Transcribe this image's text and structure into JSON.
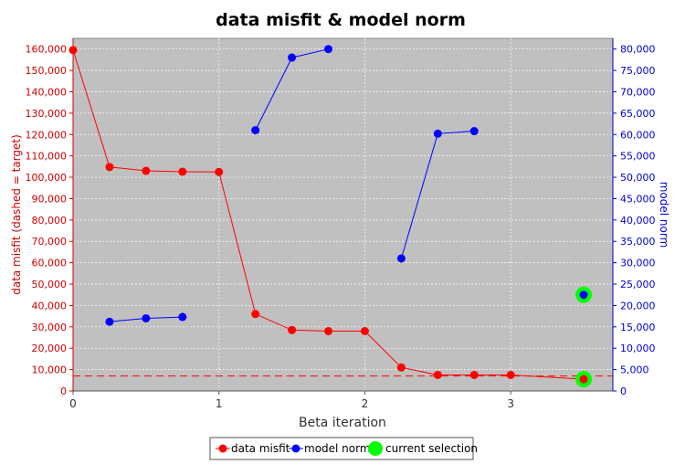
{
  "chart_data": {
    "type": "line",
    "title": "data misfit & model norm",
    "xlabel": "Beta iteration",
    "ylabel_left": "data misfit (dashed = target)",
    "ylabel_right": "model norm",
    "xlim": [
      0,
      3.7
    ],
    "ylim_left": [
      0,
      165000
    ],
    "ylim_right": [
      0,
      82500
    ],
    "x_ticks": [
      "0",
      "1",
      "2",
      "3"
    ],
    "y_left_ticks": [
      "0",
      "10,000",
      "20,000",
      "30,000",
      "40,000",
      "50,000",
      "60,000",
      "70,000",
      "80,000",
      "90,000",
      "100,000",
      "110,000",
      "120,000",
      "130,000",
      "140,000",
      "150,000",
      "160,000"
    ],
    "y_right_ticks": [
      "0",
      "5,000",
      "10,000",
      "15,000",
      "20,000",
      "25,000",
      "30,000",
      "35,000",
      "40,000",
      "45,000",
      "50,000",
      "55,000",
      "60,000",
      "65,000",
      "70,000",
      "75,000",
      "80,000"
    ],
    "grid": true,
    "legend_position": "bottom",
    "target_misfit": 7000,
    "series": [
      {
        "name": "data misfit",
        "axis": "left",
        "color": "#ff0000",
        "segments": [
          [
            [
              0,
              159500
            ],
            [
              0.25,
              104800
            ],
            [
              0.5,
              103000
            ],
            [
              0.75,
              102600
            ],
            [
              1.0,
              102500
            ],
            [
              1.25,
              36000
            ],
            [
              1.5,
              28500
            ],
            [
              1.75,
              28000
            ],
            [
              2.0,
              28000
            ],
            [
              2.25,
              11000
            ],
            [
              2.5,
              7500
            ],
            [
              2.75,
              7500
            ],
            [
              3.0,
              7500
            ],
            [
              3.5,
              5500
            ]
          ]
        ]
      },
      {
        "name": "model norm",
        "axis": "right",
        "color": "#0000ff",
        "segments": [
          [
            [
              0.25,
              16200
            ],
            [
              0.5,
              17000
            ],
            [
              0.75,
              17300
            ]
          ],
          [
            [
              1.25,
              61000
            ],
            [
              1.5,
              78000
            ],
            [
              1.75,
              80000
            ]
          ],
          [
            [
              2.25,
              31000
            ],
            [
              2.5,
              60200
            ],
            [
              2.75,
              60800
            ]
          ],
          [
            [
              3.5,
              22500
            ]
          ]
        ]
      }
    ],
    "current_selection": {
      "name": "current selection",
      "color": "#00ff00",
      "x": 3.5,
      "misfit": 5500,
      "model_norm": 22500
    },
    "legend": [
      {
        "label": "data misfit",
        "color": "#ff0000",
        "kind": "line-marker"
      },
      {
        "label": "model norm",
        "color": "#0000ff",
        "kind": "line-marker"
      },
      {
        "label": "current selection",
        "color": "#00ff00",
        "kind": "big-marker"
      }
    ]
  }
}
